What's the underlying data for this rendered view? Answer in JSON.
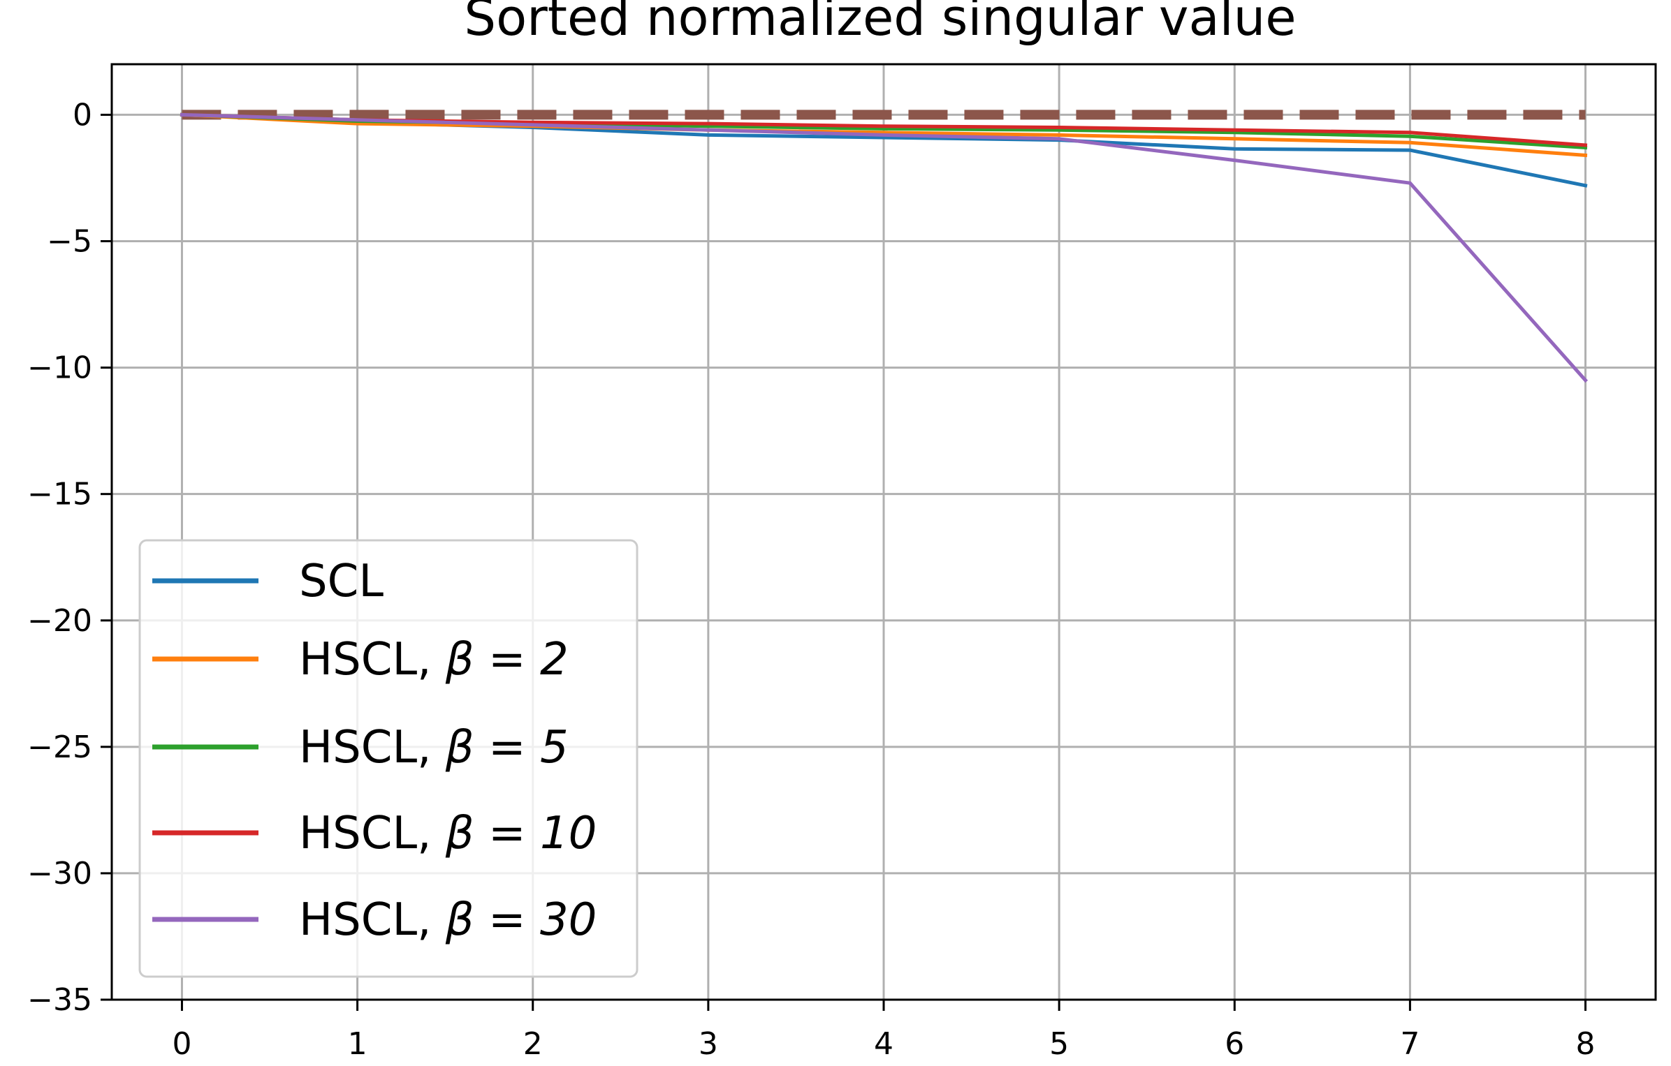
{
  "chart_data": {
    "type": "line",
    "title": "Sorted normalized singular value",
    "xlabel": "",
    "ylabel": "",
    "x": [
      0,
      1,
      2,
      3,
      4,
      5,
      6,
      7,
      8
    ],
    "xticks": [
      "0",
      "1",
      "2",
      "3",
      "4",
      "5",
      "6",
      "7",
      "8"
    ],
    "yticks": [
      "0",
      "−5",
      "−10",
      "−15",
      "−20",
      "−25",
      "−30",
      "−35"
    ],
    "xlim": [
      -0.4,
      8.4
    ],
    "ylim": [
      -35,
      2
    ],
    "grid": true,
    "legend_position": "lower-left",
    "series": [
      {
        "name": "SCL",
        "legend_prefix": "SCL",
        "legend_math": "",
        "color": "#1f77b4",
        "values": [
          0,
          -0.3,
          -0.5,
          -0.8,
          -0.9,
          -1.0,
          -1.35,
          -1.4,
          -2.8
        ]
      },
      {
        "name": "HSCL, β = 2",
        "legend_prefix": "HSCL, ",
        "legend_math": "β = 2",
        "color": "#ff7f0e",
        "values": [
          0,
          -0.35,
          -0.45,
          -0.6,
          -0.7,
          -0.8,
          -0.95,
          -1.1,
          -1.6
        ]
      },
      {
        "name": "HSCL, β = 5",
        "legend_prefix": "HSCL, ",
        "legend_math": "β = 5",
        "color": "#2ca02c",
        "values": [
          0,
          -0.25,
          -0.35,
          -0.45,
          -0.55,
          -0.6,
          -0.7,
          -0.85,
          -1.3
        ]
      },
      {
        "name": "HSCL, β = 10",
        "legend_prefix": "HSCL, ",
        "legend_math": "β = 10",
        "color": "#d62728",
        "values": [
          0,
          -0.2,
          -0.3,
          -0.35,
          -0.45,
          -0.5,
          -0.6,
          -0.7,
          -1.2
        ]
      },
      {
        "name": "HSCL, β = 30",
        "legend_prefix": "HSCL, ",
        "legend_math": "β = 30",
        "color": "#9467bd",
        "values": [
          0,
          -0.2,
          -0.4,
          -0.6,
          -0.8,
          -0.95,
          -1.8,
          -2.7,
          -10.5
        ]
      }
    ],
    "reference_line": {
      "value": 0,
      "color": "#8c564b",
      "style": "dashed"
    }
  }
}
